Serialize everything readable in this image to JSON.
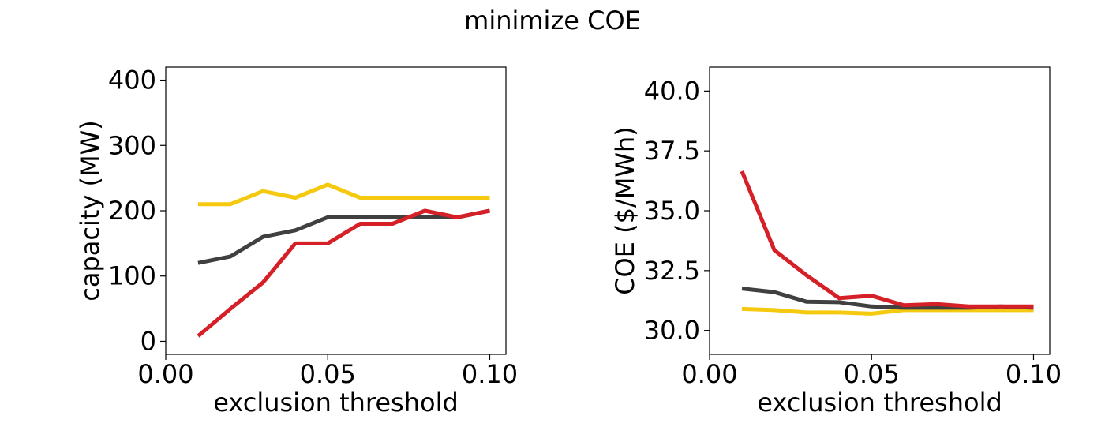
{
  "figure": {
    "title": "minimize COE"
  },
  "colors": {
    "red": "#d62027",
    "dark_gray": "#404040",
    "yellow": "#f5c90f"
  },
  "chart_data": [
    {
      "type": "line",
      "title": "",
      "xlabel": "exclusion threshold",
      "ylabel": "capacity (MW)",
      "xlim": [
        0.0,
        0.105
      ],
      "ylim": [
        -20,
        420
      ],
      "xticks": [
        0.0,
        0.05,
        0.1
      ],
      "xtick_labels": [
        "0.00",
        "0.05",
        "0.10"
      ],
      "yticks": [
        0,
        100,
        200,
        300,
        400
      ],
      "ytick_labels": [
        "0",
        "100",
        "200",
        "300",
        "400"
      ],
      "grid": false,
      "x": [
        0.01,
        0.02,
        0.03,
        0.04,
        0.05,
        0.06,
        0.07,
        0.08,
        0.09,
        0.1
      ],
      "series": [
        {
          "color": "#f5c90f",
          "values": [
            210,
            210,
            230,
            220,
            240,
            220,
            220,
            220,
            220,
            220
          ]
        },
        {
          "color": "#404040",
          "values": [
            120,
            130,
            160,
            170,
            190,
            190,
            190,
            190,
            190,
            200
          ]
        },
        {
          "color": "#d62027",
          "values": [
            8,
            50,
            90,
            150,
            150,
            180,
            180,
            200,
            190,
            200
          ]
        }
      ]
    },
    {
      "type": "line",
      "title": "",
      "xlabel": "exclusion threshold",
      "ylabel": "COE ($/MWh)",
      "xlim": [
        0.0,
        0.105
      ],
      "ylim": [
        29.0,
        41.0
      ],
      "xticks": [
        0.0,
        0.05,
        0.1
      ],
      "xtick_labels": [
        "0.00",
        "0.05",
        "0.10"
      ],
      "yticks": [
        30.0,
        32.5,
        35.0,
        37.5,
        40.0
      ],
      "ytick_labels": [
        "30.0",
        "32.5",
        "35.0",
        "37.5",
        "40.0"
      ],
      "grid": false,
      "x": [
        0.01,
        0.02,
        0.03,
        0.04,
        0.05,
        0.06,
        0.07,
        0.08,
        0.09,
        0.1
      ],
      "series": [
        {
          "color": "#f5c90f",
          "values": [
            30.9,
            30.85,
            30.75,
            30.75,
            30.7,
            30.85,
            30.85,
            30.85,
            30.85,
            30.85
          ]
        },
        {
          "color": "#404040",
          "values": [
            31.75,
            31.6,
            31.2,
            31.18,
            31.0,
            30.95,
            30.95,
            30.95,
            31.0,
            30.95
          ]
        },
        {
          "color": "#d62027",
          "values": [
            36.65,
            33.35,
            32.3,
            31.35,
            31.45,
            31.05,
            31.1,
            31.0,
            31.0,
            31.0
          ]
        }
      ]
    }
  ]
}
